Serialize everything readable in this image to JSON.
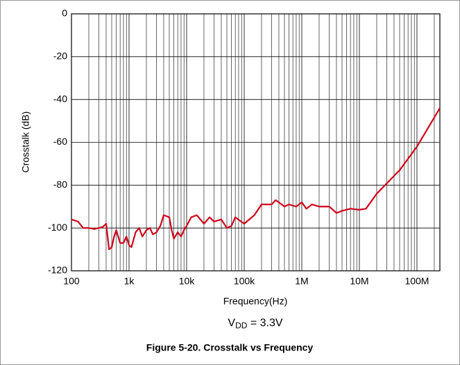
{
  "chart_data": {
    "type": "line",
    "title": "Figure 5-20. Crosstalk vs Frequency",
    "xlabel": "Frequency(Hz)",
    "ylabel": "Crosstalk (dB)",
    "annotation": {
      "base": "V",
      "sub": "DD",
      "rest": " = 3.3V"
    },
    "log_x": true,
    "grid": true,
    "xlim": [
      100,
      250000000
    ],
    "ylim": [
      -120,
      0
    ],
    "xticks": [
      100,
      {
        "value": 1000,
        "label": "1k"
      },
      {
        "value": 10000,
        "label": "10k"
      },
      {
        "value": 100000,
        "label": "100k"
      },
      {
        "value": 1000000,
        "label": "1M"
      },
      {
        "value": 10000000,
        "label": "10M"
      },
      {
        "value": 100000000,
        "label": "100M"
      }
    ],
    "yticks": [
      0,
      -20,
      -40,
      -60,
      -80,
      -100,
      -120
    ],
    "x": [
      100,
      130,
      160,
      200,
      250,
      300,
      350,
      400,
      450,
      500,
      550,
      600,
      700,
      800,
      900,
      1000,
      1100,
      1300,
      1500,
      1700,
      2000,
      2300,
      2600,
      3000,
      3500,
      4000,
      5000,
      5500,
      6000,
      7000,
      8000,
      9000,
      10000,
      12000,
      15000,
      20000,
      25000,
      30000,
      40000,
      50000,
      60000,
      70000,
      100000,
      150000,
      200000,
      300000,
      350000,
      400000,
      500000,
      600000,
      800000,
      1000000,
      1200000,
      1500000,
      2000000,
      3000000,
      4000000,
      5000000,
      7000000,
      10000000,
      13000000,
      20000000,
      50000000,
      100000000,
      250000000
    ],
    "series": [
      {
        "name": "Crosstalk",
        "color": "#d0021b",
        "values": [
          -96,
          -97,
          -100,
          -100,
          -100.5,
          -100,
          -99.5,
          -98,
          -110,
          -109,
          -104,
          -101,
          -107,
          -107,
          -104,
          -108,
          -109,
          -102,
          -100,
          -104,
          -101,
          -100,
          -103,
          -102,
          -99,
          -94,
          -95,
          -101,
          -105,
          -102,
          -104,
          -101,
          -99,
          -95,
          -94,
          -98,
          -95,
          -97,
          -96,
          -100,
          -99,
          -95,
          -98,
          -94,
          -89,
          -89,
          -87,
          -88,
          -90,
          -89,
          -90,
          -88,
          -91,
          -89,
          -90,
          -90,
          -93,
          -92,
          -91,
          -91.5,
          -91,
          -84,
          -73,
          -62,
          -44
        ]
      }
    ]
  }
}
